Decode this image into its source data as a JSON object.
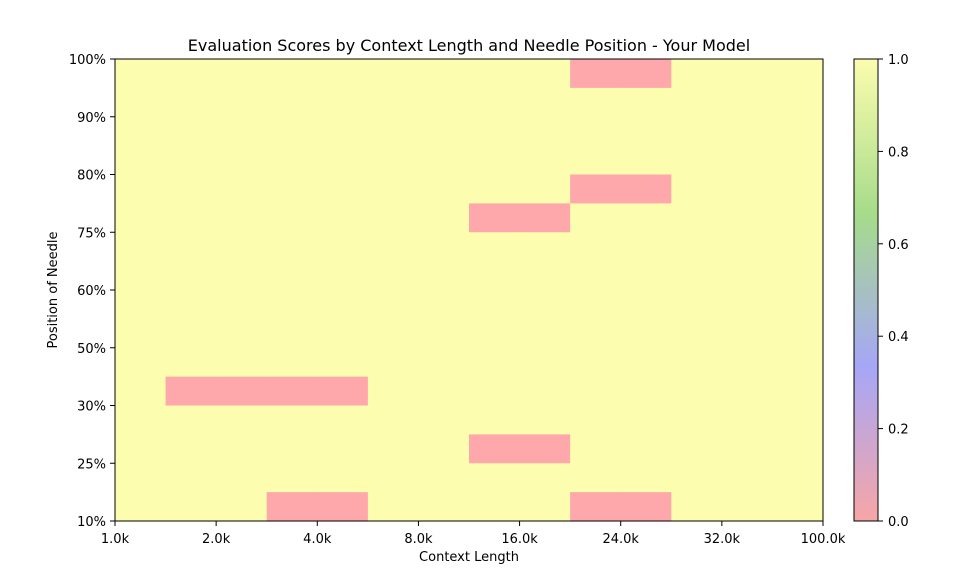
{
  "chart_data": {
    "type": "heatmap",
    "title": "Evaluation Scores by Context Length and Needle Position - Your Model",
    "xlabel": "Context Length",
    "ylabel": "Position of Needle",
    "x_tick_labels": [
      "1.0k",
      "2.0k",
      "4.0k",
      "8.0k",
      "16.0k",
      "24.0k",
      "32.0k",
      "100.0k"
    ],
    "y_tick_labels": [
      "10%",
      "25%",
      "30%",
      "50%",
      "60%",
      "75%",
      "80%",
      "90%",
      "100%"
    ],
    "columns": 14,
    "rows": 16,
    "cell_values_top_to_bottom": [
      [
        1,
        1,
        1,
        1,
        1,
        1,
        1,
        1,
        1,
        0,
        0,
        1,
        1,
        1
      ],
      [
        1,
        1,
        1,
        1,
        1,
        1,
        1,
        1,
        1,
        1,
        1,
        1,
        1,
        1
      ],
      [
        1,
        1,
        1,
        1,
        1,
        1,
        1,
        1,
        1,
        1,
        1,
        1,
        1,
        1
      ],
      [
        1,
        1,
        1,
        1,
        1,
        1,
        1,
        1,
        1,
        1,
        1,
        1,
        1,
        1
      ],
      [
        1,
        1,
        1,
        1,
        1,
        1,
        1,
        1,
        1,
        0,
        0,
        1,
        1,
        1
      ],
      [
        1,
        1,
        1,
        1,
        1,
        1,
        1,
        0,
        0,
        1,
        1,
        1,
        1,
        1
      ],
      [
        1,
        1,
        1,
        1,
        1,
        1,
        1,
        1,
        1,
        1,
        1,
        1,
        1,
        1
      ],
      [
        1,
        1,
        1,
        1,
        1,
        1,
        1,
        1,
        1,
        1,
        1,
        1,
        1,
        1
      ],
      [
        1,
        1,
        1,
        1,
        1,
        1,
        1,
        1,
        1,
        1,
        1,
        1,
        1,
        1
      ],
      [
        1,
        1,
        1,
        1,
        1,
        1,
        1,
        1,
        1,
        1,
        1,
        1,
        1,
        1
      ],
      [
        1,
        1,
        1,
        1,
        1,
        1,
        1,
        1,
        1,
        1,
        1,
        1,
        1,
        1
      ],
      [
        1,
        0,
        0,
        0,
        0,
        1,
        1,
        1,
        1,
        1,
        1,
        1,
        1,
        1
      ],
      [
        1,
        1,
        1,
        1,
        1,
        1,
        1,
        1,
        1,
        1,
        1,
        1,
        1,
        1
      ],
      [
        1,
        1,
        1,
        1,
        1,
        1,
        1,
        0,
        0,
        1,
        1,
        1,
        1,
        1
      ],
      [
        1,
        1,
        1,
        1,
        1,
        1,
        1,
        1,
        1,
        1,
        1,
        1,
        1,
        1
      ],
      [
        1,
        1,
        1,
        0,
        0,
        1,
        1,
        1,
        1,
        0,
        0,
        1,
        1,
        1
      ]
    ],
    "colorbar": {
      "min": 0.0,
      "max": 1.0,
      "tick_labels": [
        "0.0",
        "0.2",
        "0.4",
        "0.6",
        "0.8",
        "1.0"
      ],
      "colors": [
        "#f7a6a6",
        "#a6a6f7",
        "#a6dc8a",
        "#fcfcae"
      ]
    },
    "colors": {
      "low": "#ffa8ac",
      "high": "#fcfdae"
    }
  }
}
